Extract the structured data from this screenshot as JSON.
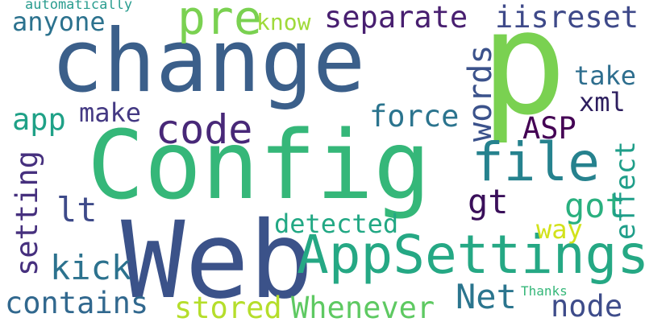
{
  "word_cloud": {
    "words": [
      {
        "text": "change",
        "color": "#3b5f8a"
      },
      {
        "text": "Config",
        "color": "#35b779"
      },
      {
        "text": "Web",
        "color": "#3b5289"
      },
      {
        "text": "p",
        "color": "#7ad151"
      },
      {
        "text": "AppSettings",
        "color": "#25a884"
      },
      {
        "text": "file",
        "color": "#26828e"
      },
      {
        "text": "code",
        "color": "#482878"
      },
      {
        "text": "pre",
        "color": "#7ad151"
      },
      {
        "text": "separate",
        "color": "#481f70"
      },
      {
        "text": "iisreset",
        "color": "#3e4989"
      },
      {
        "text": "anyone",
        "color": "#2c728e"
      },
      {
        "text": "know",
        "color": "#9fda3a"
      },
      {
        "text": "automatically",
        "color": "#2a9d8f"
      },
      {
        "text": "take",
        "color": "#2e6e8e"
      },
      {
        "text": "xml",
        "color": "#2d1e5e"
      },
      {
        "text": "force",
        "color": "#2b748e"
      },
      {
        "text": "ASP",
        "color": "#440154"
      },
      {
        "text": "app",
        "color": "#1fa187"
      },
      {
        "text": "make",
        "color": "#443983"
      },
      {
        "text": "words",
        "color": "#3b528b"
      },
      {
        "text": "gt",
        "color": "#3a0f5a"
      },
      {
        "text": "got",
        "color": "#2ab07f"
      },
      {
        "text": "effect",
        "color": "#1f9e89"
      },
      {
        "text": "lt",
        "color": "#3e4a89"
      },
      {
        "text": "detected",
        "color": "#22a884"
      },
      {
        "text": "way",
        "color": "#d2e21b"
      },
      {
        "text": "setting",
        "color": "#46307e"
      },
      {
        "text": "kick",
        "color": "#2c728e"
      },
      {
        "text": "contains",
        "color": "#31688e"
      },
      {
        "text": "stored",
        "color": "#b5de2b"
      },
      {
        "text": "Whenever",
        "color": "#5ec962"
      },
      {
        "text": "Net",
        "color": "#2b758e"
      },
      {
        "text": "Thanks",
        "color": "#35b779"
      },
      {
        "text": "node",
        "color": "#3e4c8a"
      }
    ]
  }
}
